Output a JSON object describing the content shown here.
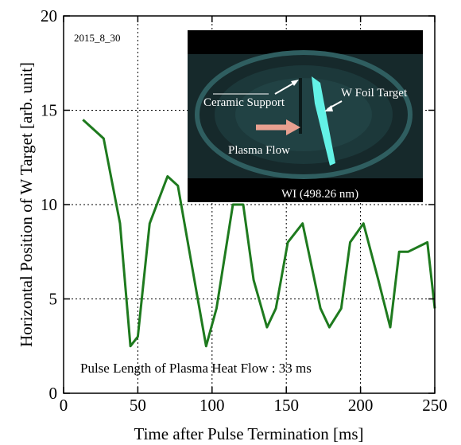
{
  "chart_data": {
    "type": "line",
    "title": "",
    "xlabel": "Time after Pulse Termination [ms]",
    "ylabel": "Horizontal Position of W Target  [arb. unit]",
    "xlim": [
      0,
      250
    ],
    "ylim": [
      0,
      20
    ],
    "x_ticks": [
      0,
      50,
      100,
      150,
      200,
      250
    ],
    "y_ticks": [
      0,
      5,
      10,
      15,
      20
    ],
    "grid": "dotted",
    "series": [
      {
        "color": "#1e7a1e",
        "x": [
          13,
          27,
          38,
          45,
          50,
          58,
          70,
          77,
          87,
          96,
          103,
          114,
          121,
          128,
          137,
          143,
          151,
          161,
          173,
          179,
          187,
          193,
          202,
          212,
          220,
          226,
          232,
          245,
          250
        ],
        "y": [
          14.5,
          13.5,
          9.0,
          2.5,
          3.0,
          9.0,
          11.5,
          11.0,
          6.5,
          2.5,
          4.5,
          10.0,
          10.0,
          6.0,
          3.5,
          4.5,
          8.0,
          9.0,
          4.5,
          3.5,
          4.5,
          8.0,
          9.0,
          6.0,
          3.5,
          7.5,
          7.5,
          8.0,
          4.5
        ]
      }
    ],
    "annotations": {
      "date_label": "2015_8_30",
      "pulse_note": "Pulse Length of Plasma Heat Flow  : 33 ms"
    }
  },
  "inset": {
    "labels": {
      "ceramic": "Ceramic Support",
      "foil": "W Foil Target",
      "flow": "Plasma Flow",
      "wavelength": "WI (498.26 nm)"
    }
  }
}
